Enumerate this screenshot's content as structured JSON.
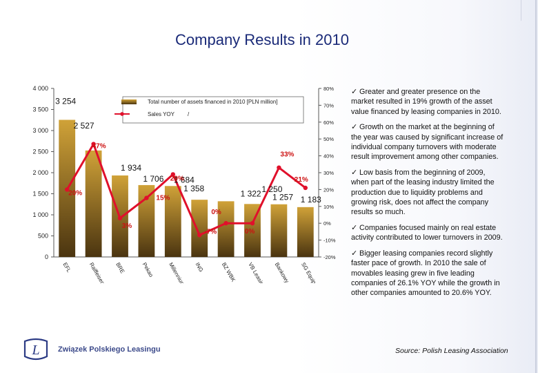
{
  "slide": {
    "title": "Company Results in 2010",
    "source": "Source: Polish Leasing Association",
    "logo_text": "Związek Polskiego Leasingu",
    "logo_mark": "L"
  },
  "bullets": [
    {
      "check": "✓",
      "text": "Greater and greater presence on the market resulted in 19% growth of the asset value financed by leasing companies in 2010."
    },
    {
      "check": "✓",
      "text": "Growth on the market at the beginning of the year was caused by significant increase of individual company turnovers with moderate result improvement among other companies."
    },
    {
      "check": "✓",
      "text": "Low basis from the beginning of 2009, when part of the leasing industry limited the production due to liquidity problems and growing risk, does not affect the company results so much."
    },
    {
      "check": "✓",
      "text": "Companies focused mainly on real estate activity contributed to lower turnovers in 2009."
    },
    {
      "check": "✓",
      "text": "Bigger leasing companies record slightly faster pace of growth. In 2010 the sale of movables leasing grew in five leading companies of 26.1% YOY while the growth in other companies amounted to 20.6% YOY."
    }
  ],
  "chart_data": {
    "type": "bar+line",
    "categories": [
      "EFL",
      "Raiffeisen",
      "BRE",
      "Pekao",
      "Millennium",
      "ING",
      "BZ WBK",
      "VB Leasing",
      "Bankowy",
      "SG Equipment"
    ],
    "series": [
      {
        "name": "Total number of assets financed in 2010 [PLN million]",
        "type": "bar",
        "axis": "left",
        "values": [
          3254,
          2527,
          1934,
          1706,
          1684,
          1358,
          1322,
          1257,
          1250,
          1183
        ],
        "labels": [
          "3 254",
          "2 527",
          "1 934",
          "1 706",
          "1 684",
          "1 358",
          "1 322",
          "1 257",
          "1 250",
          "1 183"
        ]
      },
      {
        "name": "Sales YOY",
        "type": "line",
        "axis": "right",
        "values": [
          20,
          47,
          3,
          15,
          29,
          -7,
          0,
          0,
          33,
          21
        ],
        "labels": [
          "20%",
          "47%",
          "3%",
          "15%",
          "29%",
          "-7%",
          "0%",
          "0%",
          "33%",
          "21%"
        ]
      }
    ],
    "legend_suffix": "/",
    "left_axis": {
      "range": [
        0,
        4000
      ],
      "ticks": [
        "0",
        "500",
        "1 000",
        "1 500",
        "2 000",
        "2 500",
        "3 000",
        "3 500",
        "4 000"
      ]
    },
    "right_axis": {
      "range": [
        -20,
        80
      ],
      "ticks": [
        "-20%",
        "-10%",
        "0%",
        "10%",
        "20%",
        "30%",
        "40%",
        "50%",
        "60%",
        "70%",
        "80%"
      ]
    },
    "colors": {
      "bar_top": "#d0a238",
      "bar_bottom": "#4a3410",
      "line": "#e0102b",
      "label": "#cc1111",
      "bar_label": "#111111"
    }
  }
}
